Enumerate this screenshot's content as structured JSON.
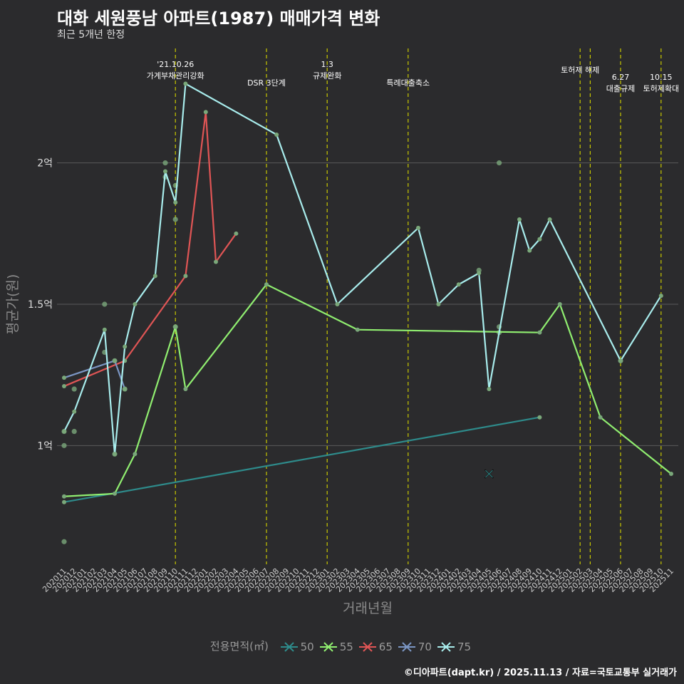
{
  "title": "대화 세원풍남 아파트(1987) 매매가격 변화",
  "subtitle": "최근 5개년 한정",
  "caption": "©디아파트(dapt.kr) / 2025.11.13 / 자료=국토교통부 실거래가",
  "legend_title": "전용면적(㎡)",
  "colors": {
    "background": "#2b2b2d",
    "grid": "#5a5a5a",
    "event_line": "#c8c800",
    "point": "#7aa87a",
    "s50": "#2e8b8b",
    "s55": "#90ee70",
    "s65": "#e05555",
    "s70": "#7b96c4",
    "s75": "#a8ecec"
  },
  "chart_data": {
    "type": "line",
    "xlabel": "거래년월",
    "ylabel": "평균가(원)",
    "x_ticks": [
      "202011",
      "202012",
      "202101",
      "202102",
      "202103",
      "202104",
      "202105",
      "202106",
      "202107",
      "202108",
      "202109",
      "202110",
      "202111",
      "202112",
      "202201",
      "202202",
      "202203",
      "202204",
      "202205",
      "202206",
      "202207",
      "202208",
      "202209",
      "202210",
      "202211",
      "202212",
      "202301",
      "202302",
      "202303",
      "202304",
      "202305",
      "202306",
      "202307",
      "202308",
      "202309",
      "202310",
      "202311",
      "202312",
      "202401",
      "202402",
      "202403",
      "202404",
      "202405",
      "202406",
      "202407",
      "202408",
      "202409",
      "202410",
      "202411",
      "202412",
      "202501",
      "202502",
      "202503",
      "202504",
      "202505",
      "202506",
      "202507",
      "202508",
      "202509",
      "202510",
      "202511"
    ],
    "y_ticks": [
      {
        "value": 1.0,
        "label": "1억"
      },
      {
        "value": 1.5,
        "label": "1.5억"
      },
      {
        "value": 2.0,
        "label": "2억"
      }
    ],
    "ylim": [
      0.58,
      2.42
    ],
    "events": [
      {
        "x": "202110",
        "lines": [
          "'21.10.26",
          "가계부채관리강화"
        ],
        "row": 0
      },
      {
        "x": "202207",
        "lines": [
          "DSR 3단계"
        ],
        "row": 1
      },
      {
        "x": "202301",
        "lines": [
          "1.3",
          "규제완화"
        ],
        "row": 0
      },
      {
        "x": "202309",
        "lines": [
          "특례대출축소"
        ],
        "row": 1
      },
      {
        "x": "202502",
        "lines": [
          "토허제 해제"
        ],
        "row": 0
      },
      {
        "x": "202503",
        "lines": [],
        "row": 0
      },
      {
        "x": "202506",
        "lines": [
          "6.27",
          "대출규제"
        ],
        "row": 1
      },
      {
        "x": "202510",
        "lines": [
          "10.15",
          "토허제확대"
        ],
        "row": 1
      }
    ],
    "series": [
      {
        "name": "50",
        "color_key": "s50",
        "points": [
          [
            "202011",
            0.8
          ],
          [
            "202410",
            1.1
          ]
        ]
      },
      {
        "name": "55",
        "color_key": "s55",
        "points": [
          [
            "202011",
            0.82
          ],
          [
            "202104",
            0.83
          ],
          [
            "202106",
            0.97
          ],
          [
            "202110",
            1.42
          ],
          [
            "202111",
            1.2
          ],
          [
            "202207",
            1.57
          ],
          [
            "202304",
            1.41
          ],
          [
            "202410",
            1.4
          ],
          [
            "202412",
            1.5
          ],
          [
            "202504",
            1.1
          ],
          [
            "202511",
            0.9
          ]
        ]
      },
      {
        "name": "65",
        "color_key": "s65",
        "points": [
          [
            "202011",
            1.21
          ],
          [
            "202105",
            1.3
          ],
          [
            "202111",
            1.6
          ],
          [
            "202201",
            2.18
          ],
          [
            "202202",
            1.65
          ],
          [
            "202204",
            1.75
          ]
        ]
      },
      {
        "name": "70",
        "color_key": "s70",
        "points": [
          [
            "202011",
            1.24
          ],
          [
            "202104",
            1.3
          ],
          [
            "202105",
            1.2
          ]
        ]
      },
      {
        "name": "75",
        "color_key": "s75",
        "points": [
          [
            "202011",
            1.05
          ],
          [
            "202012",
            1.12
          ],
          [
            "202103",
            1.41
          ],
          [
            "202104",
            0.97
          ],
          [
            "202105",
            1.35
          ],
          [
            "202106",
            1.5
          ],
          [
            "202108",
            1.6
          ],
          [
            "202109",
            1.97
          ],
          [
            "202110",
            1.86
          ],
          [
            "202111",
            2.28
          ],
          [
            "202208",
            2.1
          ],
          [
            "202302",
            1.5
          ],
          [
            "202310",
            1.77
          ],
          [
            "202312",
            1.5
          ],
          [
            "202402",
            1.57
          ],
          [
            "202404",
            1.61
          ],
          [
            "202405",
            1.2
          ],
          [
            "202408",
            1.8
          ],
          [
            "202409",
            1.69
          ],
          [
            "202410",
            1.73
          ],
          [
            "202411",
            1.8
          ],
          [
            "202506",
            1.3
          ],
          [
            "202510",
            1.53
          ]
        ]
      }
    ],
    "scatter_points": [
      [
        "202011",
        1.05
      ],
      [
        "202011",
        1.0
      ],
      [
        "202011",
        0.66
      ],
      [
        "202012",
        1.05
      ],
      [
        "202012",
        1.2
      ],
      [
        "202103",
        1.5
      ],
      [
        "202103",
        1.33
      ],
      [
        "202104",
        1.3
      ],
      [
        "202104",
        0.97
      ],
      [
        "202105",
        1.2
      ],
      [
        "202109",
        2.0
      ],
      [
        "202109",
        1.95
      ],
      [
        "202110",
        1.92
      ],
      [
        "202110",
        1.8
      ],
      [
        "202110",
        1.42
      ],
      [
        "202404",
        1.62
      ],
      [
        "202406",
        2.0
      ],
      [
        "202406",
        1.42
      ],
      [
        "202406",
        1.4
      ],
      [
        "202506",
        1.3
      ]
    ],
    "x_marker": {
      "x": "202405",
      "value": 0.9
    },
    "legend": [
      {
        "label": "50",
        "color_key": "s50"
      },
      {
        "label": "55",
        "color_key": "s55"
      },
      {
        "label": "65",
        "color_key": "s65"
      },
      {
        "label": "70",
        "color_key": "s70"
      },
      {
        "label": "75",
        "color_key": "s75"
      }
    ]
  }
}
